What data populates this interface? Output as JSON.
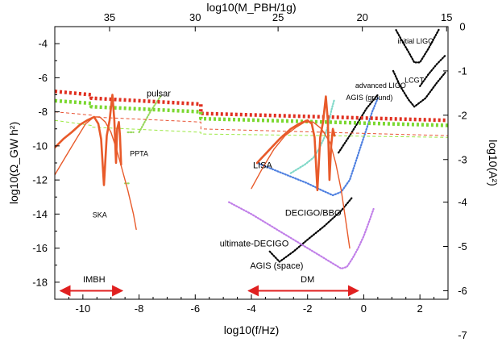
{
  "chart_data": {
    "type": "line",
    "xlabel": "log10(f/Hz)",
    "ylabel_left": "log10(Ω_GW h²)",
    "ylabel_right": "log10(A²)",
    "xlabel_top": "log10(M_PBH/1g)",
    "xlim": [
      -11,
      3
    ],
    "ylim": [
      -19,
      -3
    ],
    "x_ticks": [
      -10,
      -8,
      -6,
      -4,
      -2,
      0,
      2
    ],
    "y_ticks": [
      -18,
      -16,
      -14,
      -12,
      -10,
      -8,
      -6,
      -4
    ],
    "right_ticks": [
      {
        "label": "0",
        "y": -3.0
      },
      {
        "label": "-1",
        "y": -5.6
      },
      {
        "label": "-2",
        "y": -8.2
      },
      {
        "label": "-3",
        "y": -10.8
      },
      {
        "label": "-4",
        "y": -13.3
      },
      {
        "label": "-5",
        "y": -15.9
      },
      {
        "label": "-6",
        "y": -18.5
      },
      {
        "label": "-7",
        "y": -21.1
      }
    ],
    "top_ticks": [
      {
        "label": "35",
        "x": -9.05
      },
      {
        "label": "30",
        "x": -6.0
      },
      {
        "label": "25",
        "x": -3.05
      },
      {
        "label": "20",
        "x": -0.05
      },
      {
        "label": "15",
        "x": 2.95
      }
    ],
    "annotations": [
      {
        "text": "pulsar",
        "x": -7.3,
        "y": -7.1
      },
      {
        "text": "PPTA",
        "x": -8.0,
        "y": -10.6
      },
      {
        "text": "SKA",
        "x": -9.4,
        "y": -14.2
      },
      {
        "text": "LISA",
        "x": -3.6,
        "y": -11.3
      },
      {
        "text": "DECIGO/BBO",
        "x": -1.8,
        "y": -14.1
      },
      {
        "text": "ultimate-DECIGO",
        "x": -3.9,
        "y": -15.9
      },
      {
        "text": "AGIS (space)",
        "x": -3.1,
        "y": -17.2
      },
      {
        "text": "advanced LIGO",
        "x": 0.6,
        "y": -6.6
      },
      {
        "text": "AGIS (ground)",
        "x": 0.2,
        "y": -7.3
      },
      {
        "text": "LCGT",
        "x": 1.8,
        "y": -6.3
      },
      {
        "text": "initial LIGO",
        "x": 1.85,
        "y": -4.0
      },
      {
        "text": "IMBH",
        "x": -9.6,
        "y": -18.0
      },
      {
        "text": "DM",
        "x": -2.0,
        "y": -18.0
      }
    ],
    "ranges": [
      {
        "name": "IMBH",
        "x0": -10.8,
        "x1": -8.6,
        "y": -18.5
      },
      {
        "name": "DM",
        "x0": -4.1,
        "x1": -0.2,
        "y": -18.5
      }
    ],
    "series": [
      {
        "name": "sensitivity-initial-LIGO",
        "color": "#000000",
        "style": "dotted",
        "x": [
          1.15,
          1.35,
          1.6,
          1.8,
          2.0,
          2.3,
          2.7
        ],
        "y": [
          -3.2,
          -3.8,
          -4.5,
          -5.1,
          -5.1,
          -4.3,
          -3.1
        ]
      },
      {
        "name": "sensitivity-LCGT",
        "color": "#000000",
        "style": "dotted",
        "x": [
          2.0,
          2.3,
          2.6,
          2.9
        ],
        "y": [
          -6.5,
          -5.8,
          -5.2,
          -4.7
        ]
      },
      {
        "name": "sensitivity-advanced-LIGO",
        "color": "#000000",
        "style": "dotted",
        "x": [
          1.05,
          1.3,
          1.6,
          1.8,
          2.2,
          2.6,
          2.9
        ],
        "y": [
          -5.6,
          -6.5,
          -7.3,
          -7.7,
          -7.2,
          -6.3,
          -5.7
        ]
      },
      {
        "name": "sensitivity-AGIS-ground",
        "color": "#000000",
        "style": "dotted",
        "x": [
          -0.9,
          -0.5,
          -0.2,
          0.1,
          0.5
        ],
        "y": [
          -10.4,
          -9.4,
          -8.6,
          -7.8,
          -7.0
        ]
      },
      {
        "name": "sensitivity-AGIS-space",
        "color": "#000000",
        "style": "dotted",
        "x": [
          -3.35,
          -3.0,
          -2.5,
          -2.0,
          -1.4,
          -0.8,
          -0.4
        ],
        "y": [
          -16.2,
          -16.8,
          -16.2,
          -15.5,
          -14.7,
          -13.8,
          -13.0
        ]
      },
      {
        "name": "sensitivity-LISA",
        "color": "#7fd8c8",
        "style": "dotted",
        "x": [
          -2.6,
          -2.1,
          -1.8,
          -1.6,
          -1.4,
          -1.25,
          -1.15,
          -1.05
        ],
        "y": [
          -11.6,
          -11.1,
          -10.7,
          -10.2,
          -9.5,
          -8.7,
          -7.9,
          -7.3
        ]
      },
      {
        "name": "sensitivity-DECIGO-BBO",
        "color": "#4d7fe0",
        "style": "dotted",
        "x": [
          -3.8,
          -3.2,
          -2.6,
          -2.0,
          -1.5,
          -1.1,
          -0.8,
          -0.5,
          -0.3,
          -0.1,
          0.1,
          0.3,
          0.5
        ],
        "y": [
          -11.0,
          -11.4,
          -11.8,
          -12.2,
          -12.6,
          -12.9,
          -12.7,
          -12.0,
          -11.0,
          -10.0,
          -9.0,
          -8.0,
          -7.2
        ]
      },
      {
        "name": "sensitivity-ultimate-DECIGO",
        "color": "#c07ee8",
        "style": "dotted",
        "x": [
          -4.8,
          -4.0,
          -3.2,
          -2.4,
          -1.8,
          -1.3,
          -1.0,
          -0.8,
          -0.6,
          -0.4,
          -0.2,
          0.0,
          0.2,
          0.35
        ],
        "y": [
          -13.3,
          -14.0,
          -14.8,
          -15.6,
          -16.2,
          -16.7,
          -17.0,
          -17.2,
          -17.1,
          -16.6,
          -16.0,
          -15.3,
          -14.4,
          -13.7
        ]
      },
      {
        "name": "bound-pulsar",
        "color": "#9ad860",
        "style": "dotted",
        "x": [
          -8.0,
          -7.6,
          -7.2
        ],
        "y": [
          -9.2,
          -8.0,
          -7.0
        ]
      },
      {
        "name": "bound-PPTA",
        "color": "#9ad860",
        "style": "dotted",
        "x": [
          -8.4,
          -8.2
        ],
        "y": [
          -9.2,
          -9.2
        ]
      },
      {
        "name": "bound-SKA",
        "color": "#9ad860",
        "style": "dotted",
        "x": [
          -8.5,
          -8.35
        ],
        "y": [
          -12.2,
          -12.2
        ]
      },
      {
        "name": "upper-bound-red",
        "color": "#e03020",
        "style": "thickdot",
        "x": [
          -11.0,
          -9.7,
          -9.7,
          -5.8,
          -5.8,
          3.0
        ],
        "y": [
          -6.8,
          -7.0,
          -7.2,
          -7.55,
          -8.1,
          -8.5
        ]
      },
      {
        "name": "upper-bound-green",
        "color": "#7ad830",
        "style": "thickdot",
        "x": [
          -11.0,
          -9.7,
          -9.7,
          -5.8,
          -5.8,
          3.0
        ],
        "y": [
          -7.35,
          -7.5,
          -7.7,
          -8.0,
          -8.4,
          -8.8
        ]
      },
      {
        "name": "bound-thin-red",
        "color": "#e85030",
        "style": "dashed",
        "x": [
          -11.0,
          -9.7,
          -9.7,
          -5.8,
          -5.8,
          3.0
        ],
        "y": [
          -8.0,
          -8.2,
          -8.3,
          -8.6,
          -9.0,
          -9.4
        ]
      },
      {
        "name": "bound-thin-green",
        "color": "#9ae840",
        "style": "dashed",
        "x": [
          -11.0,
          -9.7,
          -9.7,
          -5.8,
          -5.8,
          3.0
        ],
        "y": [
          -8.5,
          -8.8,
          -8.9,
          -9.2,
          -9.3,
          -9.5
        ]
      },
      {
        "name": "spectrum-IMBH-outer",
        "color": "#e85a2a",
        "style": "solid-thin",
        "x": [
          -11.0,
          -10.6,
          -10.2,
          -9.9,
          -9.6,
          -9.4,
          -9.2,
          -9.0,
          -8.8,
          -8.6,
          -8.4,
          -8.2,
          -8.1
        ],
        "y": [
          -11.7,
          -10.6,
          -9.5,
          -8.7,
          -8.3,
          -8.3,
          -8.6,
          -9.2,
          -10.2,
          -11.4,
          -12.6,
          -14.0,
          -14.9
        ]
      },
      {
        "name": "spectrum-IMBH-peak",
        "color": "#e85a2a",
        "style": "solid-thick",
        "x": [
          -11.0,
          -10.7,
          -10.4,
          -10.1,
          -9.85,
          -9.6,
          -9.45,
          -9.35,
          -9.25,
          -9.15,
          -9.05,
          -8.95,
          -8.88,
          -8.82,
          -8.78,
          -8.72,
          -8.68,
          -8.64
        ],
        "y": [
          -10.1,
          -9.6,
          -9.2,
          -8.75,
          -8.5,
          -8.3,
          -8.7,
          -9.6,
          -12.3,
          -9.4,
          -8.5,
          -7.0,
          -8.5,
          -11.0,
          -9.0,
          -8.6,
          -9.4,
          -11.1
        ]
      },
      {
        "name": "spectrum-DM-outer",
        "color": "#e85a2a",
        "style": "solid-thin",
        "x": [
          -4.0,
          -3.6,
          -3.2,
          -2.8,
          -2.4,
          -2.1,
          -1.8,
          -1.5,
          -1.2,
          -1.0,
          -0.8,
          -0.65,
          -0.5
        ],
        "y": [
          -12.5,
          -11.3,
          -10.2,
          -9.4,
          -8.9,
          -8.6,
          -8.6,
          -9.0,
          -9.8,
          -11.0,
          -12.6,
          -14.3,
          -16.0
        ]
      },
      {
        "name": "spectrum-DM-peak",
        "color": "#e85a2a",
        "style": "solid-thick",
        "x": [
          -3.8,
          -3.4,
          -3.0,
          -2.6,
          -2.3,
          -2.0,
          -1.85,
          -1.75,
          -1.65,
          -1.55,
          -1.45,
          -1.35,
          -1.28,
          -1.22,
          -1.16,
          -1.1,
          -1.04
        ],
        "y": [
          -11.0,
          -10.3,
          -9.6,
          -9.0,
          -8.7,
          -8.5,
          -8.7,
          -9.5,
          -12.6,
          -9.5,
          -8.6,
          -7.1,
          -8.5,
          -12.0,
          -10.0,
          -9.0,
          -9.4
        ]
      }
    ]
  }
}
